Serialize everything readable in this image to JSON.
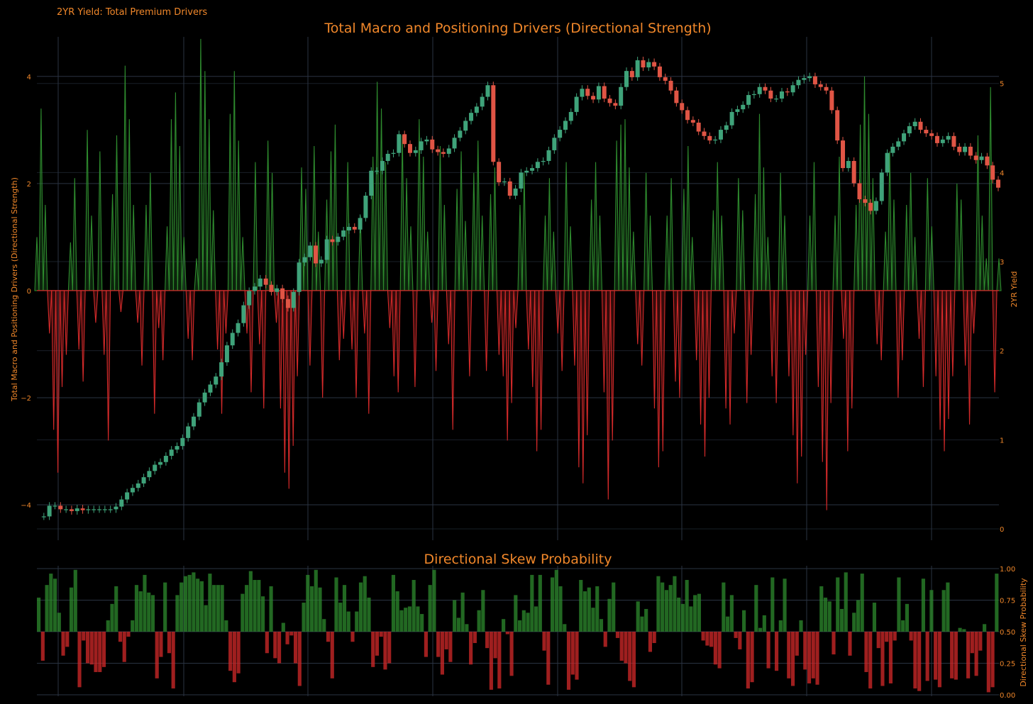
{
  "header": {
    "watermark": "2YR Yield: Total Premium Drivers"
  },
  "colors": {
    "background": "#000000",
    "accent": "#f0872a",
    "grid": "#2a3342",
    "positive": "#2e8b2e",
    "negative": "#d42a2a",
    "candle_up": "#3fa37a",
    "candle_down": "#e05545"
  },
  "chart_data": [
    {
      "id": "main",
      "type": "area",
      "title": "Total Macro and Positioning Drivers (Directional Strength)",
      "ylabel_left": "Total Macro and Positioning Drivers (Directional Strength)",
      "ylabel_right": "2YR Yield",
      "yticks_left": [
        "4",
        "2",
        "0",
        "−2",
        "−4"
      ],
      "yticks_right": [
        "5",
        "4",
        "3",
        "2",
        "1",
        "0"
      ],
      "ylim_left": [
        -4.45,
        4.5
      ],
      "ylim_right": [
        0,
        5.3
      ],
      "grid": true,
      "series": [
        {
          "type": "area",
          "values": [
            1.0,
            3.4,
            1.6,
            -0.8,
            -2.6,
            -3.4,
            -1.8,
            -1.2,
            0.9,
            2.1,
            -1.1,
            -1.7,
            3.0,
            1.4,
            -0.6,
            2.6,
            -1.2,
            -2.8,
            1.8,
            2.9,
            -0.4,
            4.2,
            3.2,
            1.6,
            -0.6,
            -1.4,
            1.6,
            2.2,
            -2.3,
            -0.7,
            -1.3,
            1.2,
            3.2,
            3.7,
            2.7,
            1.0,
            -0.9,
            -1.3,
            0.6,
            4.7,
            4.1,
            3.2,
            1.5,
            -1.1,
            -2.3,
            -0.8,
            3.3,
            4.1,
            2.8,
            1.0,
            -0.8,
            -1.9,
            2.4,
            -1.0,
            -2.2,
            2.8,
            2.2,
            -0.6,
            -2.2,
            -3.4,
            -3.7,
            -2.9,
            -1.6,
            2.3,
            1.9,
            -1.4,
            2.7,
            1.1,
            -2.0,
            1.7,
            2.6,
            3.1,
            -1.3,
            -0.9,
            2.4,
            -1.1,
            -2.0,
            1.4,
            -0.8,
            -2.3,
            2.5,
            3.9,
            3.4,
            2.4,
            -0.7,
            -1.6,
            -1.9,
            2.9,
            2.1,
            1.2,
            -1.8,
            3.2,
            2.5,
            1.1,
            -0.6,
            -1.5,
            2.7,
            1.6,
            -1.0,
            -2.6,
            1.9,
            2.6,
            1.3,
            -1.6,
            2.2,
            2.8,
            1.4,
            -1.5,
            1.8,
            2.3,
            -1.2,
            -1.6,
            -2.8,
            -2.1,
            -0.7,
            1.6,
            2.2,
            -1.1,
            -1.8,
            -3.0,
            -2.6,
            1.4,
            2.1,
            1.1,
            -0.8,
            -1.5,
            2.4,
            1.2,
            -1.4,
            -3.3,
            -3.6,
            -2.7,
            1.7,
            2.4,
            1.4,
            -1.9,
            -3.9,
            -2.8,
            2.8,
            3.1,
            3.2,
            2.3,
            1.1,
            -1.0,
            -1.4,
            2.2,
            1.4,
            -2.2,
            -3.3,
            -3.0,
            1.4,
            2.1,
            -1.7,
            -2.0,
            1.9,
            2.7,
            1.0,
            -1.3,
            -2.5,
            -3.1,
            -2.0,
            1.5,
            2.4,
            1.4,
            -2.2,
            -2.5,
            -0.8,
            2.1,
            1.5,
            -2.1,
            -1.2,
            1.8,
            3.3,
            2.3,
            1.0,
            -1.6,
            -2.1,
            2.2,
            1.4,
            -1.6,
            -2.7,
            -3.6,
            -3.1,
            -1.2,
            1.4,
            2.4,
            -1.8,
            -3.2,
            -4.1,
            -2.1,
            1.4,
            2.5,
            -0.9,
            -3.0,
            -2.2,
            1.6,
            3.1,
            4.0,
            3.3,
            2.1,
            -1.0,
            -1.3,
            1.1,
            2.6,
            1.7,
            -2.0,
            -1.3,
            1.6,
            2.2,
            1.0,
            -0.9,
            -1.8,
            2.1,
            1.2,
            -1.6,
            -2.6,
            -3.0,
            -2.4,
            -1.6,
            2.0,
            1.7,
            -1.4,
            -2.5,
            -0.8,
            2.9,
            1.4,
            0.6,
            3.8,
            -1.9,
            0.6
          ]
        },
        {
          "type": "candlestick_line",
          "name": "2YR Yield",
          "values": [
            0.14,
            0.14,
            0.26,
            0.26,
            0.22,
            0.22,
            0.2,
            0.23,
            0.21,
            0.22,
            0.22,
            0.22,
            0.22,
            0.22,
            0.25,
            0.33,
            0.41,
            0.46,
            0.51,
            0.58,
            0.65,
            0.72,
            0.75,
            0.82,
            0.89,
            0.93,
            1.02,
            1.15,
            1.26,
            1.42,
            1.53,
            1.62,
            1.71,
            1.87,
            2.06,
            2.2,
            2.31,
            2.51,
            2.67,
            2.72,
            2.81,
            2.74,
            2.66,
            2.7,
            2.58,
            2.48,
            2.66,
            2.99,
            3.05,
            3.18,
            2.98,
            3.02,
            3.25,
            3.22,
            3.28,
            3.35,
            3.39,
            3.36,
            3.49,
            3.74,
            4.02,
            4.02,
            4.13,
            4.21,
            4.22,
            4.43,
            4.32,
            4.22,
            4.25,
            4.35,
            4.37,
            4.26,
            4.23,
            4.21,
            4.27,
            4.39,
            4.47,
            4.58,
            4.67,
            4.74,
            4.85,
            4.98,
            4.12,
            3.89,
            3.9,
            3.74,
            3.82,
            4.0,
            4.02,
            4.05,
            4.12,
            4.13,
            4.25,
            4.39,
            4.48,
            4.58,
            4.68,
            4.85,
            4.94,
            4.86,
            4.82,
            4.97,
            4.83,
            4.78,
            4.75,
            4.96,
            5.14,
            5.07,
            5.26,
            5.18,
            5.24,
            5.19,
            5.07,
            5.03,
            4.92,
            4.78,
            4.7,
            4.59,
            4.56,
            4.46,
            4.41,
            4.36,
            4.37,
            4.48,
            4.53,
            4.68,
            4.71,
            4.76,
            4.87,
            4.88,
            4.96,
            4.92,
            4.83,
            4.83,
            4.91,
            4.9,
            4.98,
            5.04,
            5.06,
            5.08,
            4.99,
            4.96,
            4.92,
            4.7,
            4.36,
            4.05,
            4.13,
            3.88,
            3.7,
            3.66,
            3.57,
            3.68,
            4.0,
            4.22,
            4.29,
            4.35,
            4.44,
            4.52,
            4.57,
            4.48,
            4.44,
            4.41,
            4.33,
            4.37,
            4.41,
            4.29,
            4.23,
            4.29,
            4.19,
            4.14,
            4.18,
            4.08,
            3.92,
            3.83
          ]
        }
      ]
    },
    {
      "id": "skew",
      "type": "bar",
      "title": "Directional Skew Probability",
      "ylabel_right": "Directional Skew Probability",
      "yticks_right": [
        "1.00",
        "0.75",
        "0.50",
        "0.25",
        "0.00"
      ],
      "ylim": [
        0,
        1
      ],
      "baseline": 0.5,
      "grid": true,
      "values": [
        0.77,
        0.27,
        0.87,
        0.96,
        0.92,
        0.65,
        0.31,
        0.38,
        0.85,
        0.99,
        0.06,
        0.43,
        0.25,
        0.24,
        0.18,
        0.18,
        0.22,
        0.59,
        0.72,
        0.86,
        0.42,
        0.26,
        0.46,
        0.59,
        0.87,
        0.82,
        0.95,
        0.81,
        0.79,
        0.13,
        0.3,
        0.89,
        0.33,
        0.05,
        0.79,
        0.89,
        0.94,
        0.95,
        0.97,
        0.92,
        0.9,
        0.71,
        0.96,
        0.87,
        0.87,
        0.87,
        0.59,
        0.19,
        0.1,
        0.17,
        0.8,
        0.87,
        0.98,
        0.91,
        0.91,
        0.78,
        0.33,
        0.86,
        0.29,
        0.25,
        0.57,
        0.4,
        0.47,
        0.25,
        0.07,
        0.73,
        0.95,
        0.86,
        0.99,
        0.85,
        0.6,
        0.42,
        0.13,
        0.93,
        0.73,
        0.87,
        0.66,
        0.42,
        0.66,
        0.89,
        0.94,
        0.77,
        0.22,
        0.31,
        0.46,
        0.2,
        0.25,
        0.95,
        0.82,
        0.67,
        0.69,
        0.7,
        0.91,
        0.7,
        0.64,
        0.3,
        0.87,
        0.99,
        0.3,
        0.16,
        0.36,
        0.26,
        0.75,
        0.61,
        0.81,
        0.56,
        0.24,
        0.41,
        0.67,
        0.83,
        0.37,
        0.04,
        0.29,
        0.05,
        0.6,
        0.48,
        0.15,
        0.79,
        0.59,
        0.67,
        0.65,
        0.95,
        0.7,
        0.95,
        0.35,
        0.08,
        0.93,
        0.99,
        0.86,
        0.56,
        0.04,
        0.16,
        0.12,
        0.91,
        0.82,
        0.85,
        0.69,
        0.86,
        0.6,
        0.38,
        0.76,
        0.89,
        0.45,
        0.27,
        0.25,
        0.11,
        0.06,
        0.74,
        0.62,
        0.68,
        0.34,
        0.41,
        0.94,
        0.89,
        0.83,
        0.87,
        0.94,
        0.77,
        0.72,
        0.91,
        0.7,
        0.79,
        0.8,
        0.43,
        0.39,
        0.38,
        0.24,
        0.21,
        0.89,
        0.62,
        0.79,
        0.45,
        0.36,
        0.67,
        0.05,
        0.1,
        0.87,
        0.53,
        0.63,
        0.21,
        0.93,
        0.19,
        0.59,
        0.92,
        0.13,
        0.07,
        0.31,
        0.59,
        0.2,
        0.09,
        0.13,
        0.08,
        0.86,
        0.77,
        0.74,
        0.32,
        0.93,
        0.68,
        0.97,
        0.31,
        0.65,
        0.75,
        0.96,
        0.18,
        0.05,
        0.73,
        0.37,
        0.07,
        0.42,
        0.09,
        0.43,
        0.93,
        0.59,
        0.72,
        0.43,
        0.05,
        0.03,
        0.92,
        0.11,
        0.83,
        0.12,
        0.06,
        0.83,
        0.89,
        0.13,
        0.12,
        0.53,
        0.52,
        0.13,
        0.33,
        0.15,
        0.35,
        0.56,
        0.02,
        0.06,
        0.96
      ]
    }
  ]
}
